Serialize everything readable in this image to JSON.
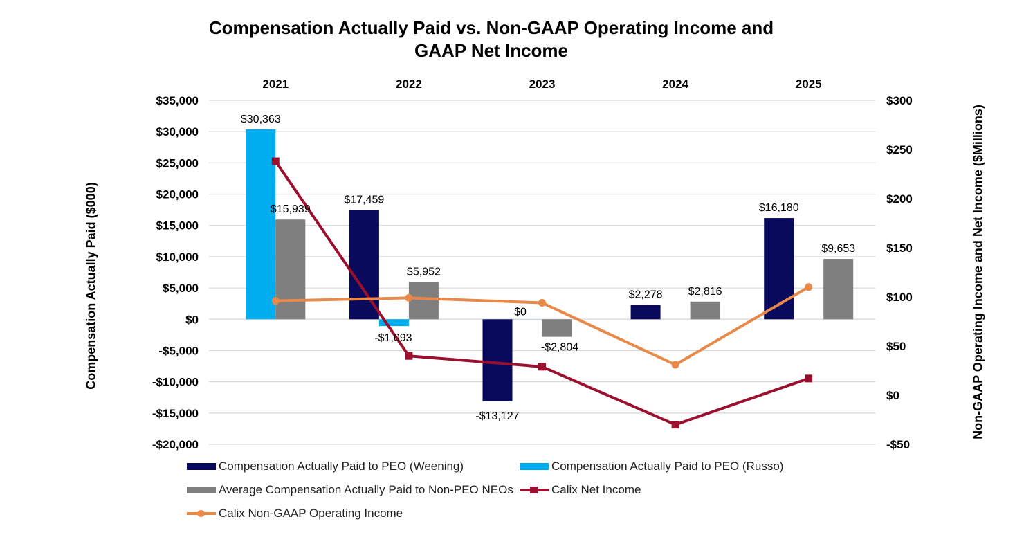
{
  "chart_data": {
    "type": "bar",
    "title_line1": "Compensation Actually Paid vs. Non-GAAP Operating Income and",
    "title_line2": "GAAP Net Income",
    "categories": [
      "2021",
      "2022",
      "2023",
      "2024",
      "2025"
    ],
    "ylabel_left": "Compensation Actually Paid ($000)",
    "ylabel_right": "Non-GAAP Operating Income and Net Income ($Millions)",
    "ylim_left": [
      -20000,
      35000
    ],
    "ylim_right": [
      -50,
      300
    ],
    "left_ticks": [
      {
        "value": 35000,
        "label": "$35,000"
      },
      {
        "value": 30000,
        "label": "$30,000"
      },
      {
        "value": 25000,
        "label": "$25,000"
      },
      {
        "value": 20000,
        "label": "$20,000"
      },
      {
        "value": 15000,
        "label": "$15,000"
      },
      {
        "value": 10000,
        "label": "$10,000"
      },
      {
        "value": 5000,
        "label": "$5,000"
      },
      {
        "value": 0,
        "label": "$0"
      },
      {
        "value": -5000,
        "label": "-$5,000"
      },
      {
        "value": -10000,
        "label": "-$10,000"
      },
      {
        "value": -15000,
        "label": "-$15,000"
      },
      {
        "value": -20000,
        "label": "-$20,000"
      }
    ],
    "right_ticks": [
      {
        "value": 300,
        "label": "$300"
      },
      {
        "value": 250,
        "label": "$250"
      },
      {
        "value": 200,
        "label": "$200"
      },
      {
        "value": 150,
        "label": "$150"
      },
      {
        "value": 100,
        "label": "$100"
      },
      {
        "value": 50,
        "label": "$50"
      },
      {
        "value": 0,
        "label": "$0"
      },
      {
        "value": -50,
        "label": "-$50"
      }
    ],
    "bar_series": [
      {
        "name": "Compensation Actually Paid to PEO (Weening)",
        "color": "#0a0a5c",
        "values": [
          null,
          17459,
          -13127,
          2278,
          16180
        ],
        "labels": [
          null,
          "$17,459",
          "-$13,127",
          "$2,278",
          "$16,180"
        ]
      },
      {
        "name": "Compensation Actually Paid to PEO (Russo)",
        "color": "#00aeef",
        "values": [
          30363,
          -1093,
          0,
          null,
          null
        ],
        "labels": [
          "$30,363",
          "-$1,093",
          "$0",
          null,
          null
        ]
      },
      {
        "name": "Average Compensation Actually Paid to Non-PEO NEOs",
        "color": "#7f7f7f",
        "values": [
          15939,
          5952,
          -2804,
          2816,
          9653
        ],
        "labels": [
          "$15,939",
          "$5,952",
          "-$2,804",
          "$2,816",
          "$9,653"
        ]
      }
    ],
    "line_series": [
      {
        "name": "Calix Net Income",
        "color": "#9b0f2f",
        "marker": "square",
        "values": [
          238,
          40,
          29,
          -30,
          17
        ]
      },
      {
        "name": "Calix Non-GAAP Operating Income",
        "color": "#e8894a",
        "marker": "circle",
        "values": [
          96,
          99,
          94,
          31,
          110
        ]
      }
    ],
    "legend": [
      {
        "label": "Compensation Actually Paid to PEO (Weening)",
        "kind": "box",
        "color": "#0a0a5c"
      },
      {
        "label": "Compensation Actually Paid to PEO (Russo)",
        "kind": "box",
        "color": "#00aeef"
      },
      {
        "label": "Average Compensation Actually Paid to Non-PEO NEOs",
        "kind": "box",
        "color": "#7f7f7f"
      },
      {
        "label": "Calix Net Income",
        "kind": "line-square",
        "color": "#9b0f2f"
      },
      {
        "label": "Calix Non-GAAP Operating Income",
        "kind": "line-circle",
        "color": "#e8894a"
      }
    ],
    "grid": true,
    "legend_position": "bottom"
  }
}
